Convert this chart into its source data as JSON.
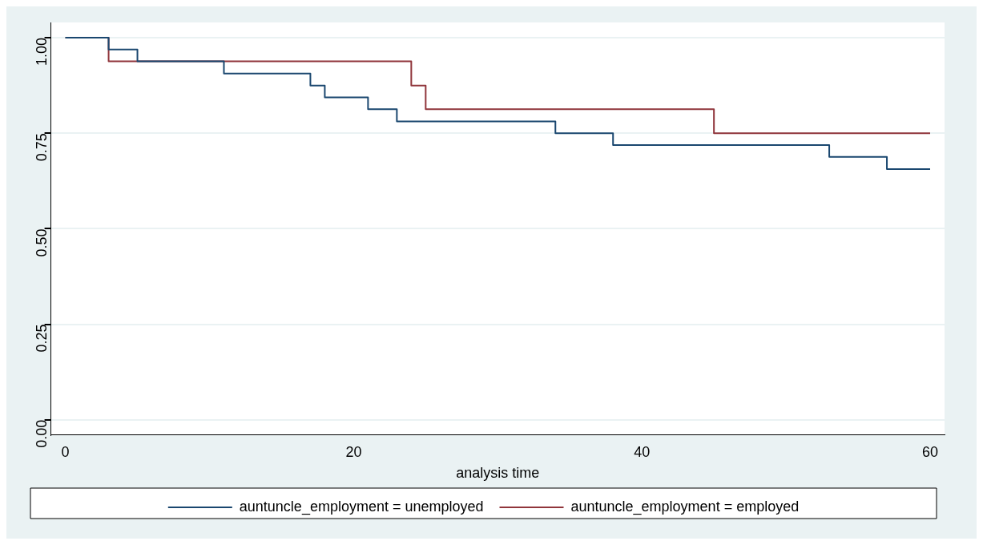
{
  "chart_data": {
    "type": "step",
    "xlabel": "analysis time",
    "xlim": [
      -1,
      61
    ],
    "xticks": [
      0,
      20,
      40,
      60
    ],
    "ylim": [
      -0.04,
      1.04
    ],
    "yticks": [
      {
        "value": 0,
        "label": "0.00"
      },
      {
        "value": 0.25,
        "label": "0.25"
      },
      {
        "value": 0.5,
        "label": "0.50"
      },
      {
        "value": 0.75,
        "label": "0.75"
      },
      {
        "value": 1,
        "label": "1.00"
      }
    ],
    "grid": "y",
    "legend": "bottom",
    "series": [
      {
        "name": "auntuncle_employment = unemployed",
        "color": "#1a476f",
        "x": [
          0,
          3,
          5,
          11,
          17,
          18,
          21,
          23,
          34,
          38,
          53,
          57,
          60
        ],
        "values": [
          1,
          0.969,
          0.938,
          0.906,
          0.875,
          0.844,
          0.813,
          0.781,
          0.75,
          0.719,
          0.688,
          0.656,
          0.656
        ]
      },
      {
        "name": "auntuncle_employment = employed",
        "color": "#90353b",
        "x": [
          0,
          3,
          24,
          25,
          45,
          60
        ],
        "values": [
          1,
          0.938,
          0.875,
          0.813,
          0.75,
          0.75
        ]
      }
    ]
  }
}
